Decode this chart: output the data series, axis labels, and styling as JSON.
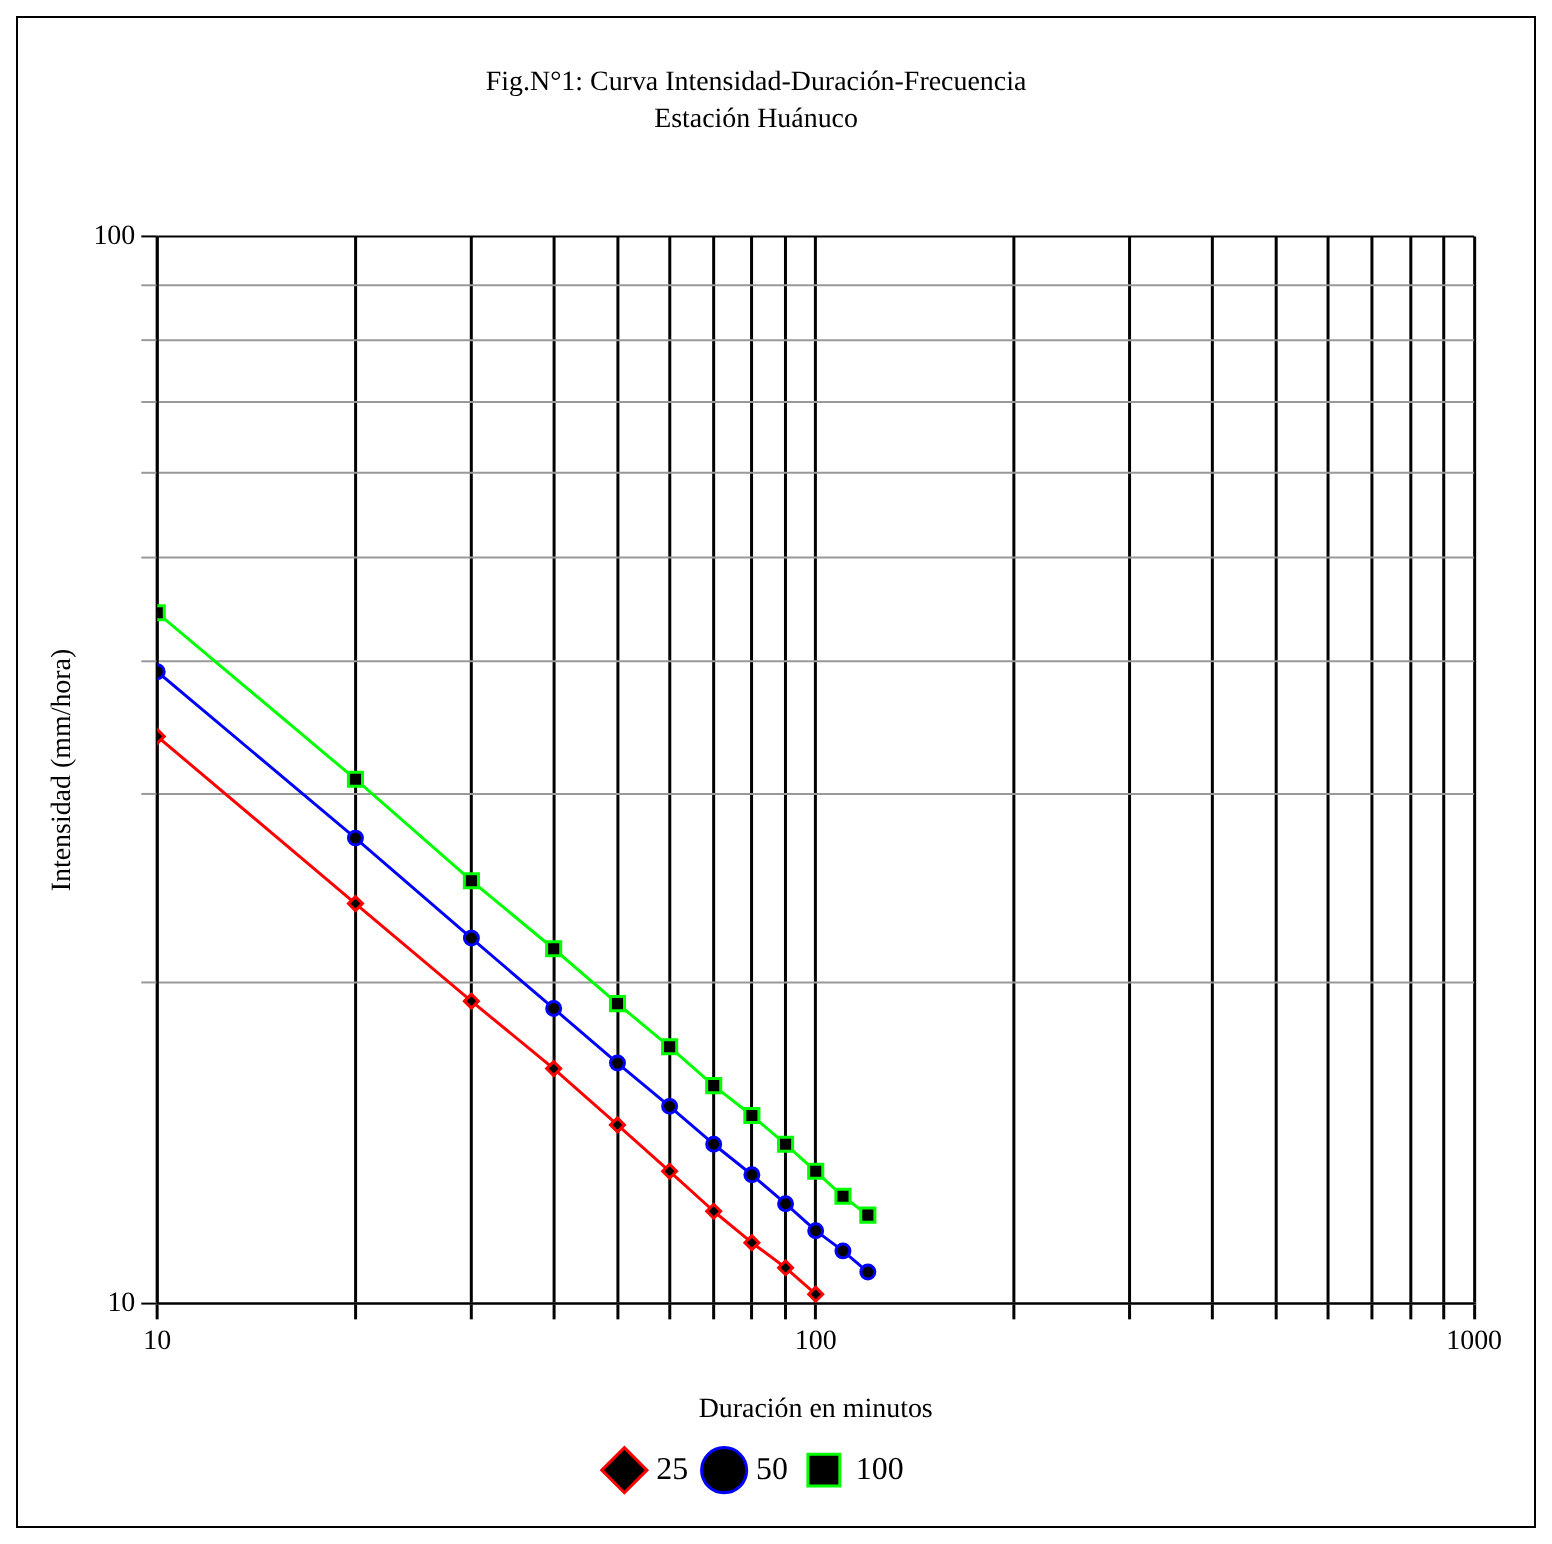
{
  "chart_data": {
    "type": "line",
    "title": "Fig.N°1: Curva Intensidad-Duración-Frecuencia",
    "subtitle": "Estación Huánuco",
    "xlabel": "Duración en minutos",
    "ylabel": "Intensidad (mm/hora)",
    "x": [
      10,
      20,
      30,
      40,
      50,
      60,
      70,
      80,
      90,
      100,
      110,
      120
    ],
    "series": [
      {
        "name": "25",
        "color": "#ff0000",
        "marker": "diamond",
        "values": [
          34.0,
          23.7,
          19.2,
          16.6,
          14.7,
          13.3,
          12.2,
          11.4,
          10.8,
          10.2,
          null,
          null
        ]
      },
      {
        "name": "50",
        "color": "#0000ff",
        "marker": "circle",
        "values": [
          39.1,
          27.3,
          22.0,
          18.9,
          16.8,
          15.3,
          14.1,
          13.2,
          12.4,
          11.7,
          11.2,
          10.7
        ]
      },
      {
        "name": "100",
        "color": "#00ff00",
        "marker": "square",
        "values": [
          44.4,
          31.0,
          24.9,
          21.5,
          19.1,
          17.4,
          16.0,
          15.0,
          14.1,
          13.3,
          12.6,
          12.1
        ]
      }
    ],
    "log": "xy",
    "xlim": [
      10,
      1000
    ],
    "ylim": [
      10,
      100
    ],
    "xticks": [
      10,
      {
        "value": 20,
        "label": null
      },
      {
        "value": 30,
        "label": null
      },
      {
        "value": 40,
        "label": null
      },
      {
        "value": 50,
        "label": null
      },
      {
        "value": 60,
        "label": null
      },
      {
        "value": 70,
        "label": null
      },
      {
        "value": 80,
        "label": null
      },
      {
        "value": 90,
        "label": null
      },
      100,
      {
        "value": 200,
        "label": null
      },
      {
        "value": 300,
        "label": null
      },
      {
        "value": 400,
        "label": null
      },
      {
        "value": 500,
        "label": null
      },
      {
        "value": 600,
        "label": null
      },
      {
        "value": 700,
        "label": null
      },
      {
        "value": 800,
        "label": null
      },
      {
        "value": 900,
        "label": null
      },
      1000
    ],
    "yticks": [
      10,
      {
        "value": 20,
        "label": null
      },
      {
        "value": 30,
        "label": null
      },
      {
        "value": 40,
        "label": null
      },
      {
        "value": 50,
        "label": null
      },
      {
        "value": 60,
        "label": null
      },
      {
        "value": 70,
        "label": null
      },
      {
        "value": 80,
        "label": null
      },
      {
        "value": 90,
        "label": null
      },
      100
    ],
    "grid": true,
    "legend": "bottom"
  }
}
